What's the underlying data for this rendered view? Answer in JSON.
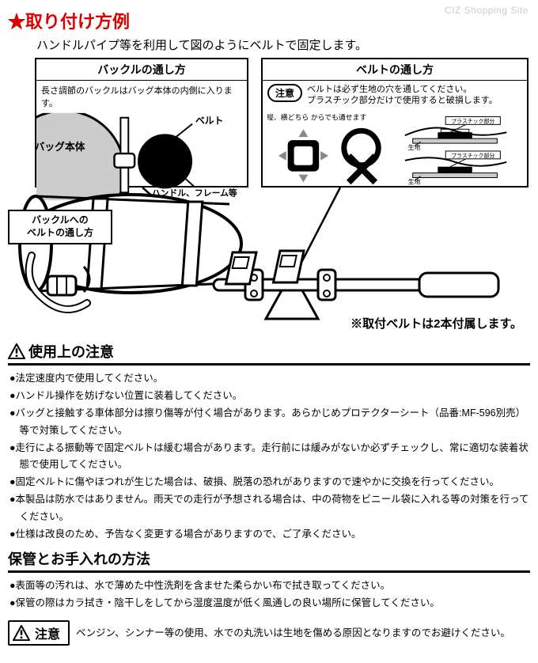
{
  "watermark": "CIZ Shopping Site",
  "title_star": "★",
  "title": "取り付け方例",
  "subtitle": "ハンドルパイプ等を利用して図のようにベルトで固定します。",
  "panel_left": {
    "header": "バックルの通し方",
    "text": "長さ調節のバックルはバッグ本体の内側に入ります。",
    "label_bag": "バッグ本体",
    "label_belt": "ベルト",
    "label_handle": "ハンドル、フレーム等"
  },
  "panel_right": {
    "header": "ベルトの通し方",
    "notice_label": "注意",
    "notice_text": "ベルトは必ず生地の穴を通してください。\nプラスチック部分だけで使用すると破損します。",
    "belt_dir": "ベルトは縦、横どちら\nからでも通せます",
    "ok": "〇",
    "ng": "✕",
    "label_plastic": "プラスチック部分",
    "label_fabric": "生地"
  },
  "callout_left": "バックルへの\nベルトの通し方",
  "belt_note": "※取付ベルトは2本付属します。",
  "section_usage": {
    "title": "使用上の注意",
    "items": [
      "●法定速度内で使用してください。",
      "●ハンドル操作を妨げない位置に装着してください。",
      "●バッグと接触する車体部分は擦り傷等が付く場合があります。あらかじめプロテクターシート（品番:MF-596別売）等で対策してください。",
      "●走行による振動等で固定ベルトは緩む場合があります。走行前には緩みがないか必ずチェックし、常に適切な装着状態で使用してください。",
      "●固定ベルトに傷やほつれが生じた場合は、破損、脱落の恐れがありますので速やかに交換を行ってください。",
      "●本製品は防水ではありません。雨天での走行が予想される場合は、中の荷物をビニール袋に入れる等の対策を行ってください。",
      "●仕様は改良のため、予告なく変更する場合がありますので、ご了承ください。"
    ]
  },
  "section_care": {
    "title": "保管とお手入れの方法",
    "items": [
      "●表面等の汚れは、水で薄めた中性洗剤を含ませた柔らかい布で拭き取ってください。",
      "●保管の際はカラ拭き・陰干しをしてから湿度温度が低く風通しの良い場所に保管してください。"
    ]
  },
  "caution": {
    "label": "注意",
    "text": "ベンジン、シンナー等の使用、水での丸洗いは生地を傷める原因となりますのでお避けください。"
  },
  "colors": {
    "red": "#d00000",
    "black": "#000000",
    "gray": "#cccccc",
    "bg": "#ffffff"
  }
}
